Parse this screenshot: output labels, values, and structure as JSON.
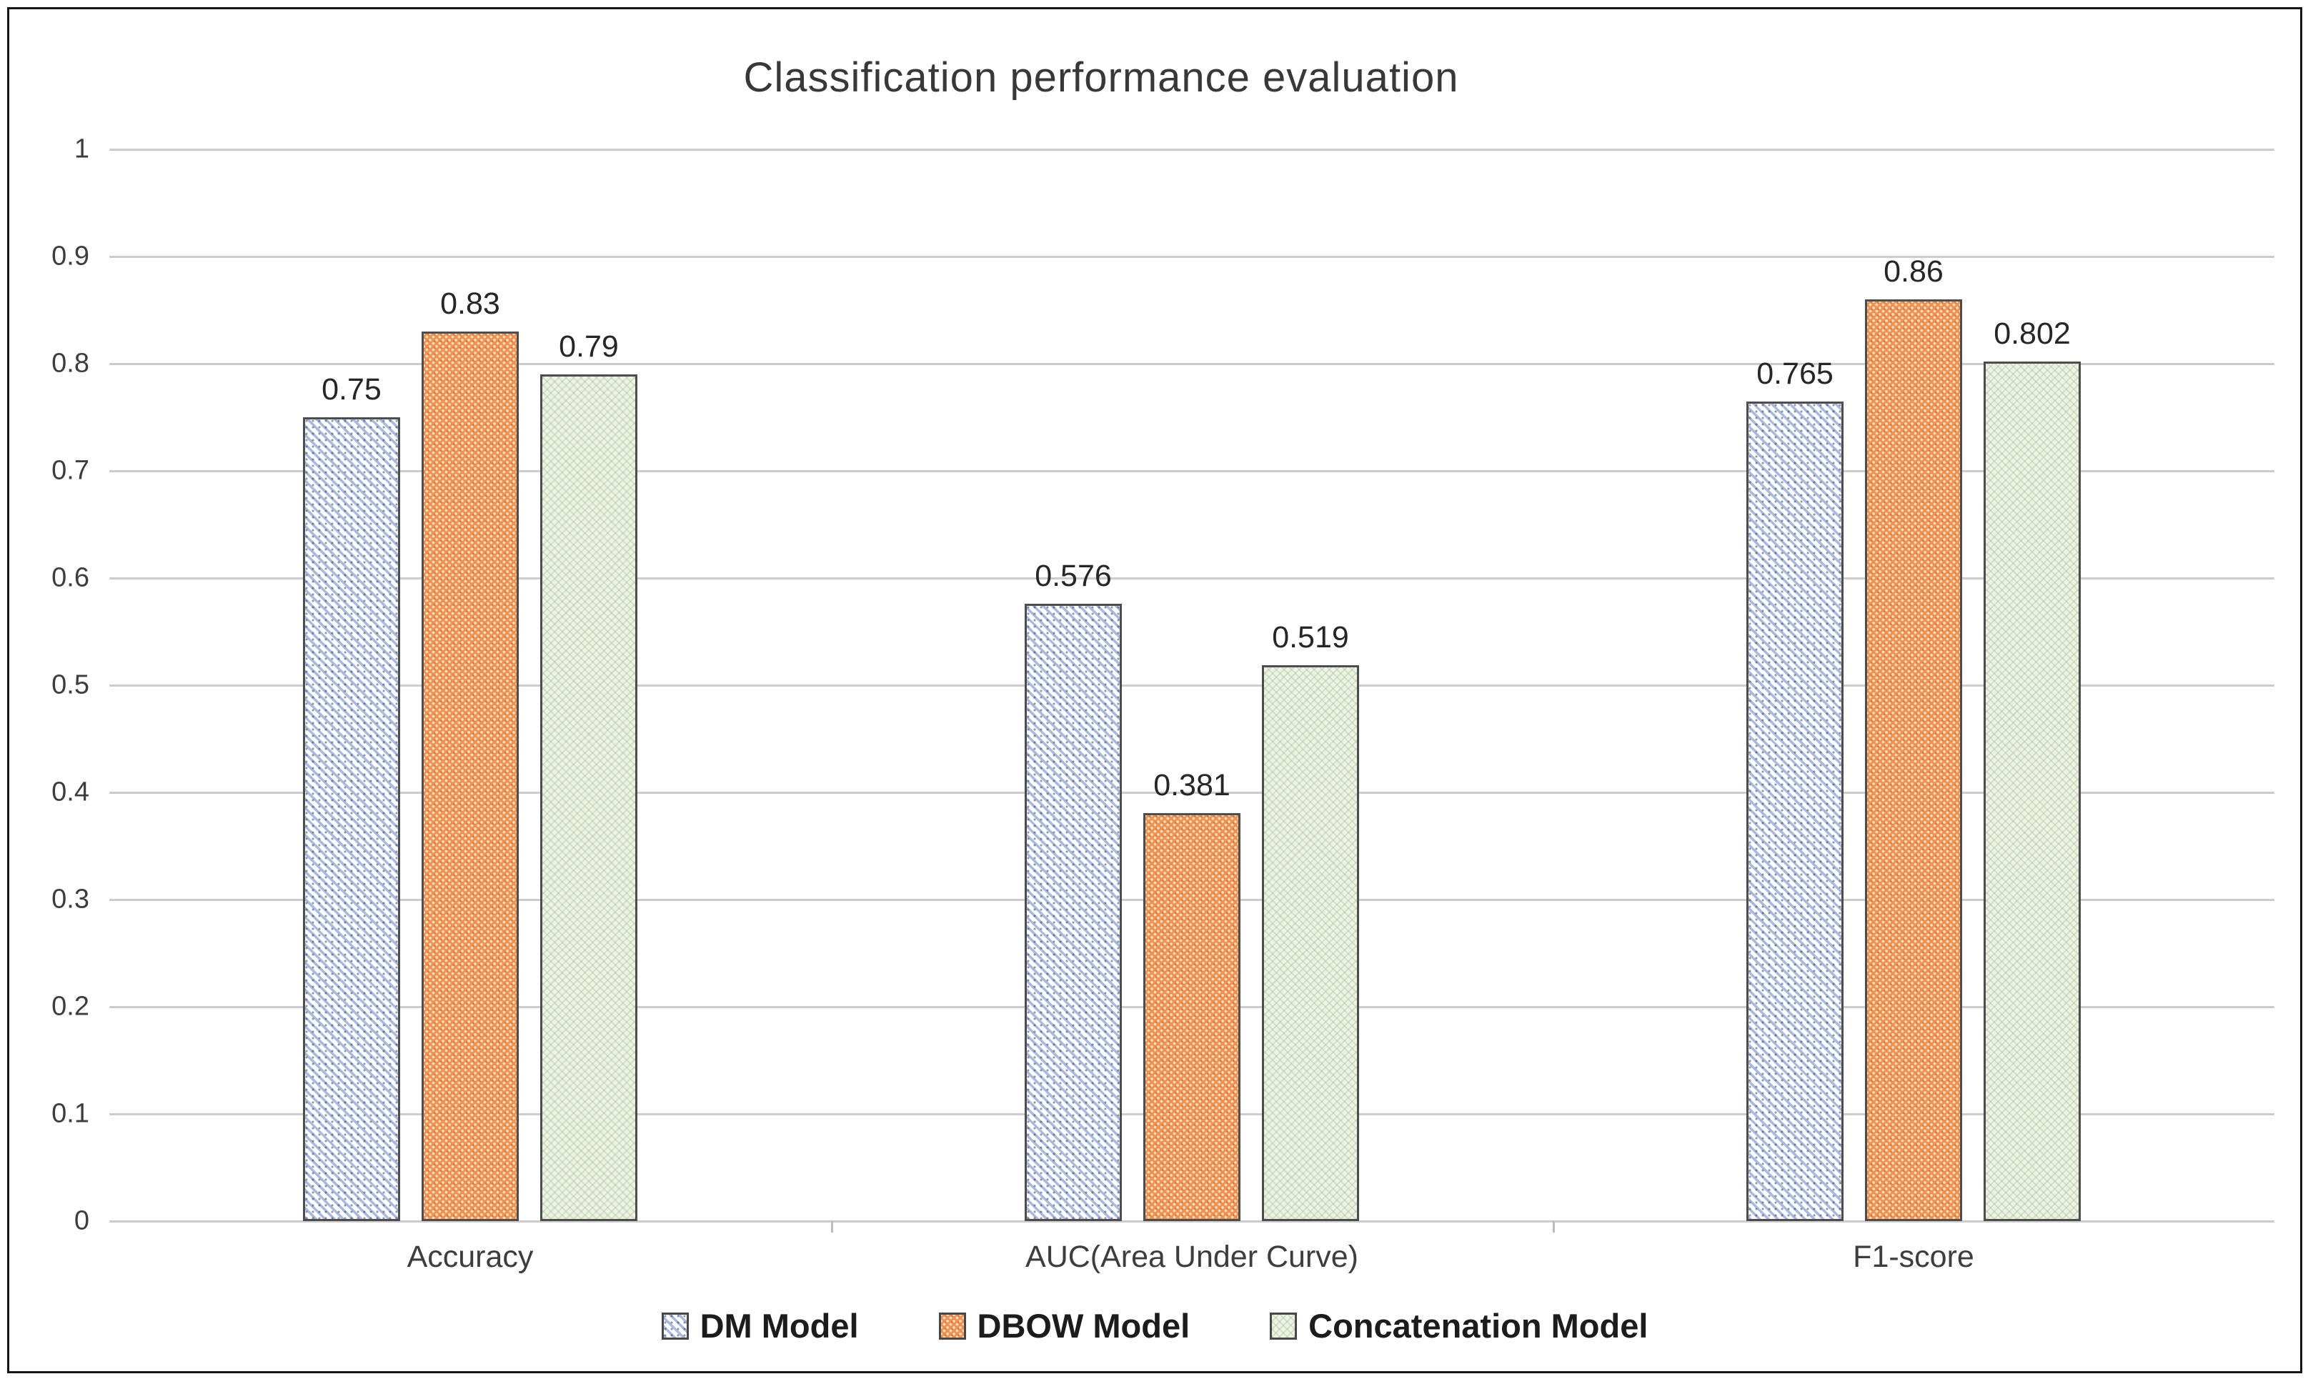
{
  "chart_data": {
    "type": "bar",
    "title": "Classification performance evaluation",
    "categories": [
      "Accuracy",
      "AUC(Area Under Curve)",
      "F1-score"
    ],
    "series": [
      {
        "name": "DM Model",
        "pattern": "diagonal-stripes",
        "color": "#a9bade",
        "values": [
          0.75,
          0.576,
          0.765
        ],
        "value_labels": [
          "0.75",
          "0.576",
          "0.765"
        ]
      },
      {
        "name": "DBOW Model",
        "pattern": "dots",
        "color": "#ef9150",
        "values": [
          0.83,
          0.381,
          0.86
        ],
        "value_labels": [
          "0.83",
          "0.381",
          "0.86"
        ]
      },
      {
        "name": "Concatenation Model",
        "pattern": "zigzag",
        "color": "#edf2e5",
        "values": [
          0.79,
          0.519,
          0.802
        ],
        "value_labels": [
          "0.79",
          "0.519",
          "0.802"
        ]
      }
    ],
    "y_axis": {
      "min": 0,
      "max": 1,
      "step": 0.1,
      "tick_labels": [
        "1",
        "0.9",
        "0.8",
        "0.7",
        "0.6",
        "0.5",
        "0.4",
        "0.3",
        "0.2",
        "0.1",
        "0"
      ]
    },
    "xlabel": "",
    "ylabel": "",
    "grid": true,
    "gridline_color": "#cccccc",
    "bar_border_color": "#4d4d4d",
    "frame_border_color": "#161616",
    "legend_position": "bottom"
  }
}
